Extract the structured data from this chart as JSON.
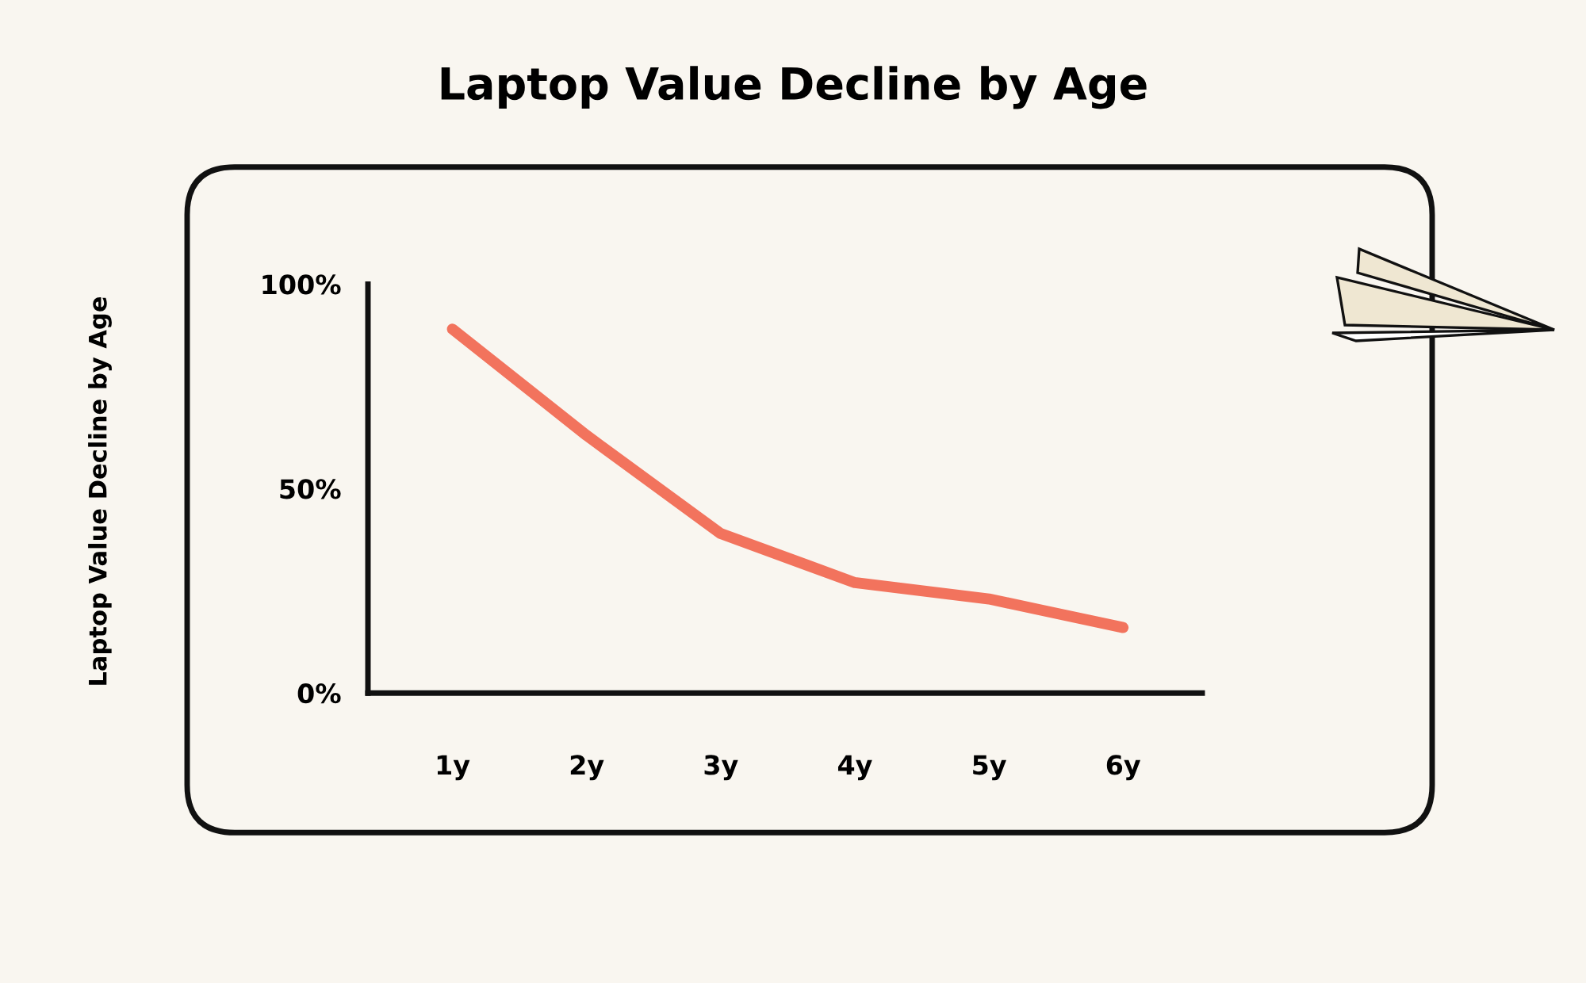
{
  "chart_data": {
    "type": "line",
    "title": "Laptop Value Decline by Age",
    "annotations": [
      "Laptop Value Decline by Age"
    ],
    "categories": [
      "1y",
      "2y",
      "3y",
      "4y",
      "5y",
      "6y"
    ],
    "series": [
      {
        "color": "#f2735d",
        "values": [
          89,
          63,
          39,
          27,
          23,
          16
        ]
      }
    ],
    "ylim": [
      0,
      100
    ],
    "yticks": [
      {
        "value": 0,
        "label": "0%"
      },
      {
        "value": 50,
        "label": "50%"
      },
      {
        "value": 100,
        "label": "100%"
      }
    ],
    "grid": false,
    "marker": "none",
    "line_style": "solid"
  }
}
